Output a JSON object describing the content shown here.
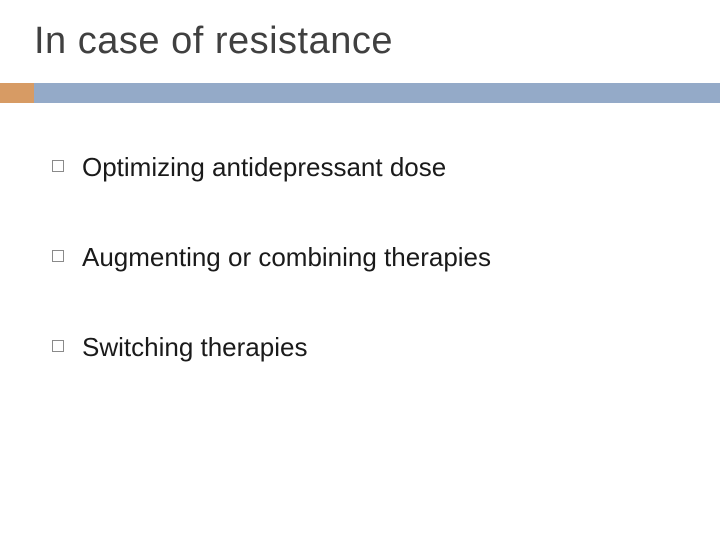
{
  "slide": {
    "title": "In case of resistance",
    "accent_colors": {
      "orange": "#d79b64",
      "blue": "#94aac8"
    },
    "title_color": "#404040",
    "title_fontsize": 38,
    "bullet_fontsize": 26,
    "bullet_text_color": "#1a1a1a",
    "bullet_marker_border": "#8a8a8a",
    "background": "#ffffff",
    "bullets": [
      {
        "text": "Optimizing antidepressant dose"
      },
      {
        "text": "Augmenting or combining therapies"
      },
      {
        "text": "Switching therapies"
      }
    ]
  }
}
